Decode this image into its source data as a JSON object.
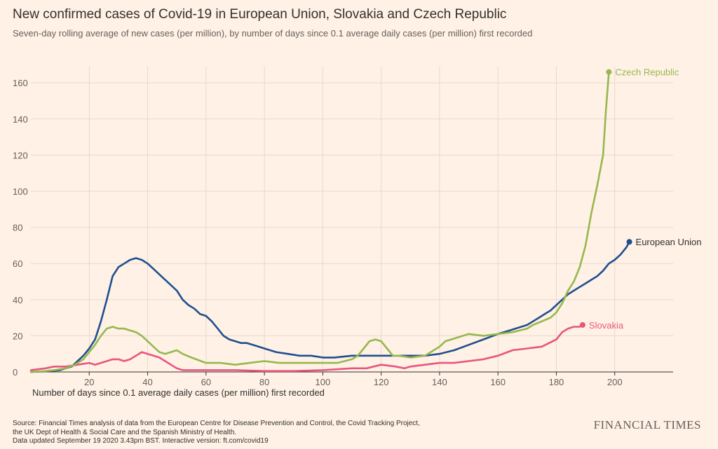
{
  "chart_data": {
    "type": "line",
    "title": "New confirmed cases of Covid-19 in European Union, Slovakia and Czech Republic",
    "subtitle": "Seven-day rolling average of new cases (per million), by number of days since 0.1 average daily cases (per million) first recorded",
    "xlabel": "Number of days since 0.1 average daily cases (per million) first recorded",
    "ylabel": "",
    "xlim": [
      0,
      220
    ],
    "ylim": [
      0,
      170
    ],
    "xticks": [
      20,
      40,
      60,
      80,
      100,
      120,
      140,
      160,
      180,
      200
    ],
    "xtick_labels": [
      "20",
      "40",
      "60",
      "80",
      "100",
      "120",
      "140",
      "160",
      "180",
      "200"
    ],
    "yticks": [
      0,
      20,
      40,
      60,
      80,
      100,
      120,
      140,
      160
    ],
    "ytick_labels": [
      "0",
      "20",
      "40",
      "60",
      "80",
      "100",
      "120",
      "140",
      "160"
    ],
    "grid": true,
    "legend": "direct-labels",
    "series": [
      {
        "name": "European Union",
        "color": "#1f4f8f",
        "x": [
          0,
          5,
          10,
          14,
          16,
          18,
          20,
          22,
          24,
          26,
          28,
          30,
          32,
          34,
          36,
          38,
          40,
          42,
          44,
          46,
          48,
          50,
          52,
          54,
          56,
          58,
          60,
          62,
          64,
          66,
          68,
          70,
          72,
          74,
          76,
          78,
          80,
          84,
          88,
          92,
          96,
          100,
          104,
          110,
          115,
          120,
          125,
          130,
          135,
          140,
          145,
          150,
          155,
          160,
          164,
          168,
          170,
          172,
          174,
          176,
          178,
          180,
          182,
          184,
          186,
          188,
          190,
          192,
          194,
          196,
          198,
          200,
          202,
          204,
          205
        ],
        "y": [
          0,
          0.3,
          1,
          3,
          6,
          9,
          13,
          18,
          28,
          40,
          53,
          58,
          60,
          62,
          63,
          62,
          60,
          57,
          54,
          51,
          48,
          45,
          40,
          37,
          35,
          32,
          31,
          28,
          24,
          20,
          18,
          17,
          16,
          16,
          15,
          14,
          13,
          11,
          10,
          9,
          9,
          8,
          8,
          9,
          9,
          9,
          9,
          9,
          9,
          10,
          12,
          15,
          18,
          21,
          23,
          25,
          26,
          28,
          30,
          32,
          34,
          37,
          40,
          43,
          45,
          47,
          49,
          51,
          53,
          56,
          60,
          62,
          65,
          69,
          72
        ]
      },
      {
        "name": "Slovakia",
        "color": "#e8557f",
        "x": [
          0,
          5,
          8,
          12,
          16,
          20,
          22,
          24,
          26,
          28,
          30,
          32,
          34,
          36,
          38,
          40,
          42,
          44,
          46,
          48,
          50,
          52,
          55,
          60,
          70,
          80,
          90,
          100,
          110,
          115,
          120,
          125,
          128,
          130,
          135,
          140,
          145,
          150,
          155,
          160,
          165,
          170,
          175,
          180,
          182,
          184,
          186,
          188,
          189
        ],
        "y": [
          1,
          2,
          3,
          3,
          4,
          5,
          4,
          5,
          6,
          7,
          7,
          6,
          7,
          9,
          11,
          10,
          9,
          8,
          6,
          4,
          2,
          1,
          1,
          1,
          1,
          0.5,
          0.5,
          1,
          2,
          2,
          4,
          3,
          2,
          3,
          4,
          5,
          5,
          6,
          7,
          9,
          12,
          13,
          14,
          18,
          22,
          24,
          25,
          25,
          26
        ]
      },
      {
        "name": "Czech Republic",
        "color": "#96b84d",
        "x": [
          0,
          5,
          8,
          12,
          15,
          18,
          20,
          22,
          24,
          26,
          28,
          30,
          32,
          34,
          36,
          38,
          40,
          42,
          44,
          46,
          48,
          50,
          52,
          55,
          60,
          65,
          70,
          75,
          80,
          85,
          90,
          95,
          100,
          105,
          110,
          112,
          114,
          116,
          118,
          120,
          122,
          124,
          126,
          130,
          135,
          140,
          142,
          144,
          146,
          148,
          150,
          155,
          160,
          165,
          170,
          172,
          175,
          178,
          180,
          182,
          184,
          186,
          188,
          190,
          192,
          194,
          196,
          197,
          198
        ],
        "y": [
          0,
          0.5,
          1,
          2,
          4,
          7,
          11,
          15,
          20,
          24,
          25,
          24,
          24,
          23,
          22,
          20,
          17,
          14,
          11,
          10,
          11,
          12,
          10,
          8,
          5,
          5,
          4,
          5,
          6,
          5,
          5,
          5,
          5,
          5,
          7,
          9,
          13,
          17,
          18,
          17,
          13,
          9,
          9,
          8,
          9,
          14,
          17,
          18,
          19,
          20,
          21,
          20,
          21,
          22,
          24,
          26,
          28,
          30,
          33,
          38,
          45,
          50,
          58,
          70,
          88,
          103,
          120,
          145,
          166
        ]
      }
    ]
  },
  "footer": {
    "source_line1": "Source: Financial Times analysis of data from the European Centre for Disease Prevention and Control, the Covid Tracking Project,",
    "source_line2": "the UK Dept of Health & Social Care and the Spanish Ministry of Health.",
    "source_line3": "Data updated September 19 2020 3.43pm BST. Interactive version: ft.com/covid19",
    "brand": "FINANCIAL TIMES"
  },
  "colors": {
    "background": "#fff1e5",
    "grid": "#e6d9ce",
    "axis": "#33302e"
  }
}
